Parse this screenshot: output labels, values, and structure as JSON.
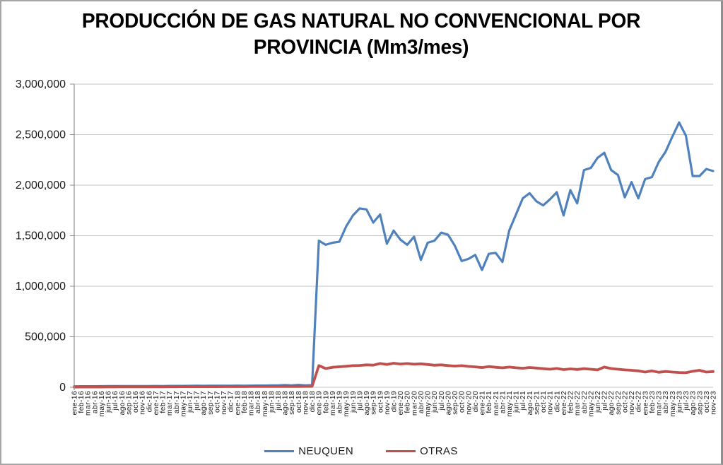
{
  "title": {
    "line1": "PRODUCCIÓN DE GAS NATURAL NO CONVENCIONAL POR",
    "line2": "PROVINCIA (Mm3/mes)"
  },
  "chart_data": {
    "type": "line",
    "title": "PRODUCCIÓN DE GAS NATURAL NO CONVENCIONAL POR PROVINCIA (Mm3/mes)",
    "xlabel": "",
    "ylabel": "",
    "ylim": [
      0,
      3000000
    ],
    "grid": true,
    "legend_position": "bottom",
    "ytick_values": [
      0,
      500000,
      1000000,
      1500000,
      2000000,
      2500000,
      3000000
    ],
    "ytick_labels": [
      "0",
      "500,000",
      "1,000,000",
      "1,500,000",
      "2,000,000",
      "2,500,000",
      "3,000,000"
    ],
    "categories": [
      "ene-16",
      "feb-16",
      "mar-16",
      "abr-16",
      "may-16",
      "jun-16",
      "jul-16",
      "ago-16",
      "sep-16",
      "oct-16",
      "nov-16",
      "dic-16",
      "ene-17",
      "feb-17",
      "mar-17",
      "abr-17",
      "may-17",
      "jun-17",
      "jul-17",
      "ago-17",
      "sep-17",
      "oct-17",
      "nov-17",
      "dic-17",
      "ene-18",
      "feb-18",
      "mar-18",
      "abr-18",
      "may-18",
      "jun-18",
      "jul-18",
      "ago-18",
      "sep-18",
      "oct-18",
      "nov-18",
      "dic-18",
      "ene-19",
      "feb-19",
      "mar-19",
      "abr-19",
      "may-19",
      "jun-19",
      "jul-19",
      "ago-19",
      "sep-19",
      "oct-19",
      "nov-19",
      "dic-19",
      "ene-20",
      "feb-20",
      "mar-20",
      "abr-20",
      "may-20",
      "jun-20",
      "jul-20",
      "ago-20",
      "sep-20",
      "oct-20",
      "nov-20",
      "dic-20",
      "ene-21",
      "feb-21",
      "mar-21",
      "abr-21",
      "may-21",
      "jun-21",
      "jul-21",
      "ago-21",
      "sep-21",
      "oct-21",
      "nov-21",
      "dic-21",
      "ene-22",
      "feb-22",
      "mar-22",
      "abr-22",
      "may-22",
      "jun-22",
      "jul-22",
      "ago-22",
      "sep-22",
      "oct-22",
      "nov-22",
      "dic-22",
      "ene-23",
      "feb-23",
      "mar-23",
      "abr-23",
      "may-23",
      "jun-23",
      "jul-23",
      "ago-23",
      "sep-23",
      "oct-23",
      "nov-23"
    ],
    "series": [
      {
        "name": "NEUQUEN",
        "color": "#4F81BD",
        "values": [
          9000,
          9500,
          10000,
          10000,
          10500,
          11000,
          11000,
          11500,
          11000,
          11500,
          12000,
          12000,
          12500,
          12000,
          13000,
          13000,
          13500,
          14000,
          14500,
          14000,
          14500,
          15000,
          15000,
          15500,
          16000,
          15500,
          16000,
          16500,
          17000,
          18000,
          19000,
          22000,
          18000,
          24000,
          19000,
          21000,
          1450000,
          1410000,
          1430000,
          1440000,
          1590000,
          1700000,
          1770000,
          1760000,
          1630000,
          1710000,
          1420000,
          1550000,
          1460000,
          1410000,
          1490000,
          1260000,
          1430000,
          1450000,
          1530000,
          1510000,
          1400000,
          1250000,
          1270000,
          1310000,
          1160000,
          1320000,
          1330000,
          1240000,
          1550000,
          1710000,
          1870000,
          1920000,
          1840000,
          1800000,
          1860000,
          1930000,
          1700000,
          1950000,
          1820000,
          2150000,
          2170000,
          2270000,
          2320000,
          2150000,
          2100000,
          1880000,
          2030000,
          1870000,
          2060000,
          2080000,
          2230000,
          2330000,
          2480000,
          2620000,
          2490000,
          2090000,
          2090000,
          2160000,
          2140000
        ]
      },
      {
        "name": "OTRAS",
        "color": "#C0504D",
        "values": [
          2000,
          2500,
          2500,
          3000,
          3000,
          3500,
          3500,
          4000,
          4000,
          4500,
          4500,
          5000,
          5000,
          5000,
          5500,
          5500,
          6000,
          6000,
          6000,
          6500,
          6500,
          6500,
          7000,
          7000,
          7000,
          7000,
          7500,
          7500,
          8000,
          8000,
          8000,
          8500,
          8500,
          8500,
          9000,
          9000,
          215000,
          185000,
          198000,
          203000,
          208000,
          214000,
          216000,
          222000,
          219000,
          235000,
          225000,
          238000,
          230000,
          235000,
          228000,
          232000,
          225000,
          218000,
          222000,
          215000,
          210000,
          214000,
          206000,
          202000,
          195000,
          205000,
          198000,
          192000,
          200000,
          193000,
          188000,
          196000,
          190000,
          184000,
          178000,
          186000,
          175000,
          182000,
          176000,
          184000,
          178000,
          172000,
          200000,
          185000,
          178000,
          172000,
          168000,
          162000,
          150000,
          162000,
          148000,
          156000,
          150000,
          146000,
          144000,
          158000,
          168000,
          150000,
          155000
        ]
      }
    ],
    "styles": {
      "gridline_color": "#C6C6C6",
      "axis_color": "#8E8E8E",
      "tick_text_color": "#1a1a1a"
    }
  }
}
